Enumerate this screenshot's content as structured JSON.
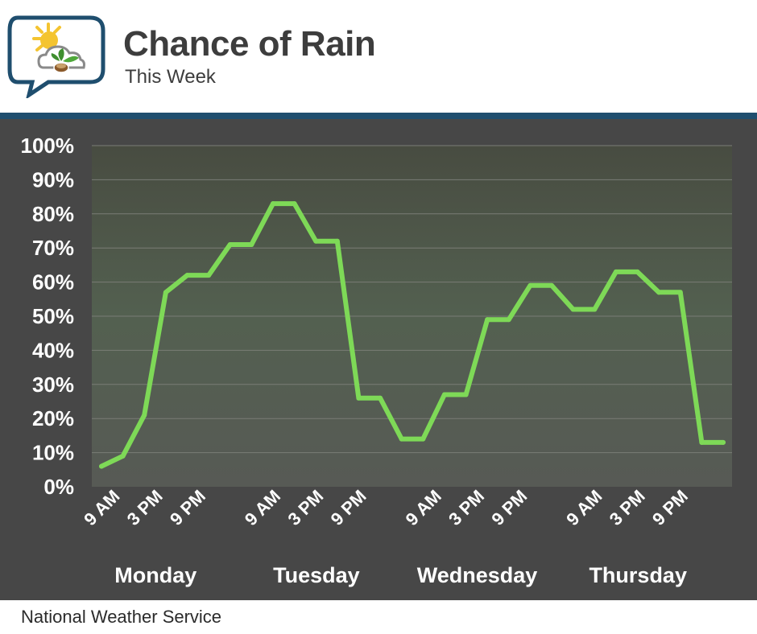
{
  "header": {
    "title": "Chance of Rain",
    "subtitle": "This Week"
  },
  "footer": {
    "source": "National Weather Service"
  },
  "colors": {
    "line": "#7ed957",
    "panel": "#474747",
    "band": "#1f4e6e",
    "text_dark": "#3d3d3d"
  },
  "icons": [
    "sun-cloud-plant-icon"
  ],
  "chart_data": {
    "type": "line",
    "title": "",
    "xlabel": "",
    "ylabel": "",
    "ylim": [
      0,
      100
    ],
    "yticks": [
      "0%",
      "10%",
      "20%",
      "30%",
      "40%",
      "50%",
      "60%",
      "70%",
      "80%",
      "90%",
      "100%"
    ],
    "grid": true,
    "days": [
      "Monday",
      "Tuesday",
      "Wednesday",
      "Thursday"
    ],
    "tick_labels": [
      "9 AM",
      "3 PM",
      "9 PM"
    ],
    "series": [
      {
        "values": [
          6,
          9,
          21,
          57,
          62,
          62,
          71,
          71,
          83,
          83,
          72,
          72,
          26,
          26,
          14,
          14,
          27,
          27,
          49,
          49,
          59,
          59,
          52,
          52,
          63,
          63,
          57,
          57,
          13,
          13
        ]
      }
    ]
  }
}
